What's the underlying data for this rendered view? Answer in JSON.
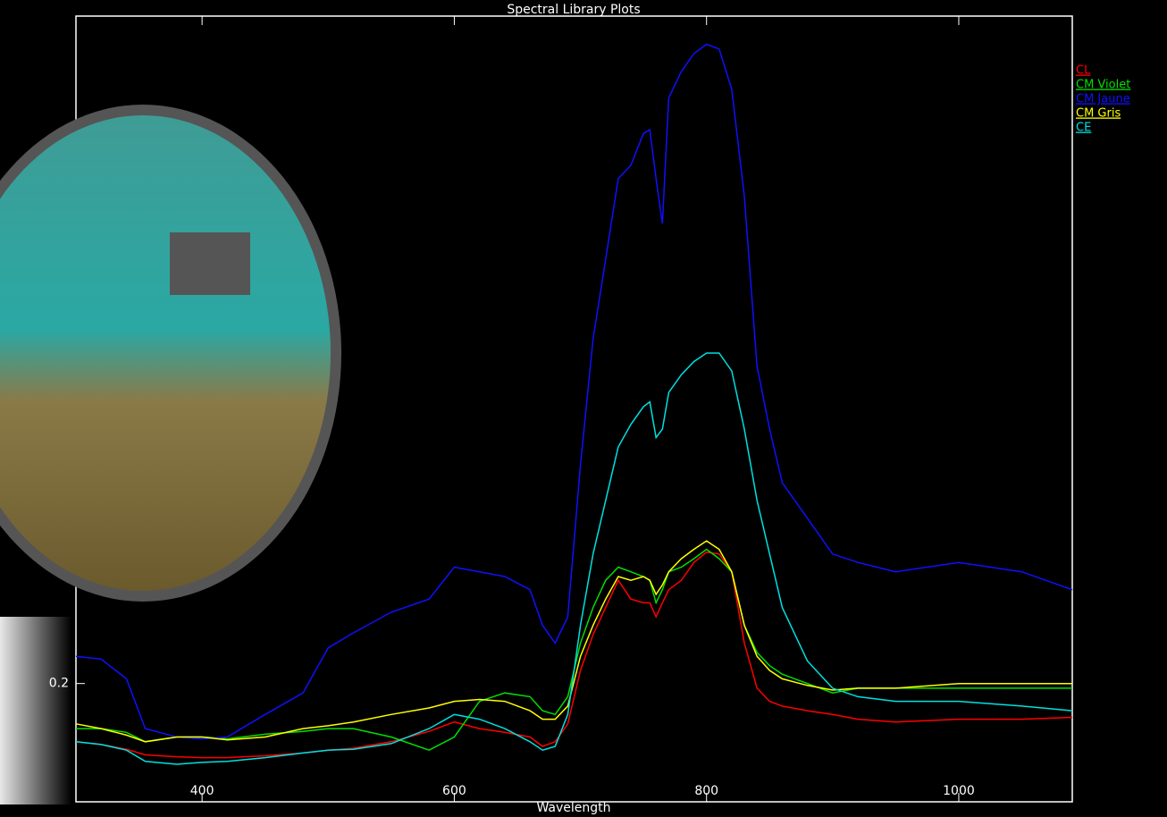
{
  "chart_data": {
    "type": "line",
    "title": "Spectral Library Plots",
    "xlabel": "Wavelength",
    "xlim": [
      300,
      1090
    ],
    "ylim": [
      0.074,
      0.911
    ],
    "xticks": [
      400,
      600,
      800,
      1000
    ],
    "yticks": [
      0.2
    ],
    "legend": "top-right",
    "x": [
      300,
      320,
      340,
      355,
      380,
      400,
      420,
      450,
      480,
      500,
      520,
      550,
      580,
      600,
      620,
      640,
      660,
      670,
      680,
      690,
      700,
      710,
      720,
      730,
      740,
      750,
      755,
      760,
      765,
      770,
      780,
      790,
      800,
      810,
      820,
      830,
      840,
      850,
      860,
      880,
      900,
      920,
      950,
      1000,
      1050,
      1090
    ],
    "series": [
      {
        "name": "CL",
        "color": "#ff0000",
        "values": [
          0.138,
          0.135,
          0.13,
          0.124,
          0.122,
          0.121,
          0.121,
          0.123,
          0.126,
          0.129,
          0.131,
          0.138,
          0.149,
          0.159,
          0.152,
          0.148,
          0.143,
          0.133,
          0.138,
          0.157,
          0.214,
          0.252,
          0.281,
          0.31,
          0.29,
          0.286,
          0.286,
          0.271,
          0.286,
          0.3,
          0.31,
          0.329,
          0.34,
          0.338,
          0.319,
          0.243,
          0.195,
          0.181,
          0.176,
          0.171,
          0.167,
          0.162,
          0.159,
          0.162,
          0.162,
          0.164
        ]
      },
      {
        "name": "CM Violet",
        "color": "#00e000",
        "values": [
          0.152,
          0.152,
          0.148,
          0.138,
          0.143,
          0.143,
          0.141,
          0.146,
          0.149,
          0.152,
          0.152,
          0.143,
          0.129,
          0.143,
          0.181,
          0.19,
          0.186,
          0.171,
          0.167,
          0.186,
          0.243,
          0.281,
          0.31,
          0.324,
          0.319,
          0.314,
          0.31,
          0.286,
          0.3,
          0.319,
          0.324,
          0.333,
          0.343,
          0.333,
          0.319,
          0.262,
          0.233,
          0.219,
          0.21,
          0.2,
          0.19,
          0.195,
          0.195,
          0.195,
          0.195,
          0.195
        ]
      },
      {
        "name": "CM Jaune",
        "color": "#1010ff",
        "values": [
          0.229,
          0.226,
          0.205,
          0.152,
          0.143,
          0.141,
          0.143,
          0.167,
          0.19,
          0.238,
          0.254,
          0.276,
          0.29,
          0.324,
          0.319,
          0.314,
          0.3,
          0.262,
          0.243,
          0.271,
          0.433,
          0.567,
          0.652,
          0.738,
          0.752,
          0.786,
          0.79,
          0.738,
          0.69,
          0.824,
          0.852,
          0.871,
          0.881,
          0.876,
          0.833,
          0.719,
          0.538,
          0.471,
          0.414,
          0.376,
          0.338,
          0.329,
          0.319,
          0.329,
          0.319,
          0.3
        ]
      },
      {
        "name": "CM Gris",
        "color": "#ffff00",
        "values": [
          0.157,
          0.152,
          0.145,
          0.138,
          0.143,
          0.143,
          0.14,
          0.143,
          0.152,
          0.155,
          0.159,
          0.167,
          0.174,
          0.181,
          0.183,
          0.181,
          0.171,
          0.162,
          0.162,
          0.176,
          0.229,
          0.262,
          0.29,
          0.314,
          0.31,
          0.314,
          0.31,
          0.295,
          0.305,
          0.319,
          0.333,
          0.343,
          0.352,
          0.343,
          0.319,
          0.262,
          0.229,
          0.214,
          0.205,
          0.198,
          0.193,
          0.195,
          0.195,
          0.2,
          0.2,
          0.2
        ]
      },
      {
        "name": "CE",
        "color": "#00e0e0",
        "values": [
          0.138,
          0.135,
          0.129,
          0.117,
          0.114,
          0.116,
          0.117,
          0.121,
          0.126,
          0.129,
          0.13,
          0.136,
          0.152,
          0.167,
          0.162,
          0.152,
          0.138,
          0.129,
          0.133,
          0.167,
          0.262,
          0.338,
          0.395,
          0.452,
          0.476,
          0.495,
          0.5,
          0.462,
          0.471,
          0.51,
          0.529,
          0.543,
          0.552,
          0.552,
          0.533,
          0.471,
          0.395,
          0.338,
          0.281,
          0.224,
          0.195,
          0.186,
          0.181,
          0.181,
          0.176,
          0.171
        ]
      }
    ]
  }
}
